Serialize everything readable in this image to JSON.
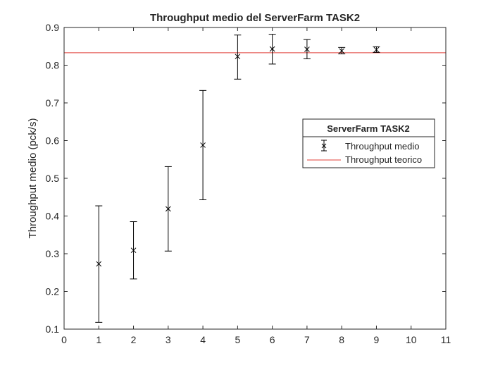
{
  "chart_data": {
    "type": "scatter",
    "title": "Throughput medio del ServerFarm TASK2",
    "xlabel": "",
    "ylabel": "Throughput medio (pck/s)",
    "xlim": [
      0,
      11
    ],
    "ylim": [
      0.1,
      0.9
    ],
    "xticks": [
      "0",
      "1",
      "2",
      "3",
      "4",
      "5",
      "6",
      "7",
      "8",
      "9",
      "10",
      "11"
    ],
    "yticks": [
      "0.1",
      "0.2",
      "0.3",
      "0.4",
      "0.5",
      "0.6",
      "0.7",
      "0.8",
      "0.9"
    ],
    "grid": false,
    "legend": {
      "title": "ServerFarm TASK2",
      "placement": "right",
      "entries": [
        "Throughput medio",
        "Throughput teorico"
      ]
    },
    "series": [
      {
        "name": "Throughput medio",
        "kind": "errorbar",
        "color": "#000000",
        "x": [
          1,
          2,
          3,
          4,
          5,
          6,
          7,
          8,
          9
        ],
        "y": [
          0.273,
          0.309,
          0.419,
          0.588,
          0.823,
          0.843,
          0.842,
          0.838,
          0.841
        ],
        "lower": [
          0.118,
          0.233,
          0.307,
          0.443,
          0.763,
          0.803,
          0.817,
          0.83,
          0.834
        ],
        "upper": [
          0.427,
          0.385,
          0.531,
          0.733,
          0.88,
          0.882,
          0.868,
          0.847,
          0.849
        ]
      },
      {
        "name": "Throughput teorico",
        "kind": "hline",
        "color": "#e0403a",
        "y": 0.833
      }
    ]
  }
}
